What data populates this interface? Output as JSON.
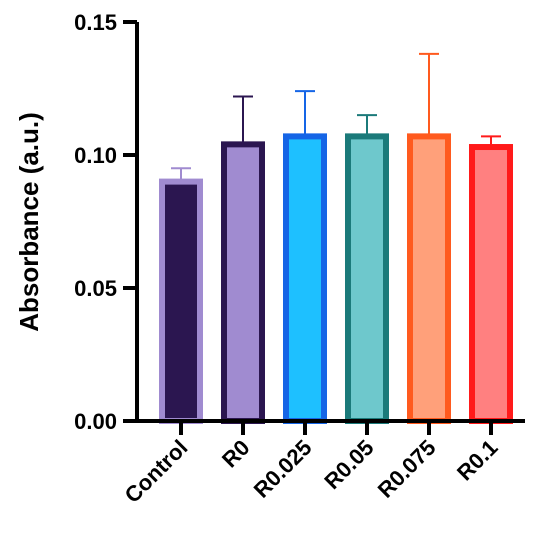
{
  "chart_data": {
    "type": "bar",
    "title": "",
    "xlabel": "",
    "ylabel": "Absorbance (a.u.)",
    "ylim": [
      0,
      0.15
    ],
    "yticks": [
      "0.00",
      "0.05",
      "0.10",
      "0.15"
    ],
    "ytick_values": [
      0,
      0.05,
      0.1,
      0.15
    ],
    "categories": [
      "Control",
      "R0",
      "R0.025",
      "R0.05",
      "R0.075",
      "R0.1"
    ],
    "values": [
      0.09,
      0.104,
      0.107,
      0.107,
      0.107,
      0.103
    ],
    "error_upper": [
      0.005,
      0.018,
      0.017,
      0.008,
      0.031,
      0.004
    ],
    "fill_colors": [
      "#2b1650",
      "#a08bd0",
      "#1ec0ff",
      "#6ec8cc",
      "#ffa07a",
      "#ff8080"
    ],
    "edge_colors": [
      "#a08bd0",
      "#2b1650",
      "#1565e6",
      "#1b7a7a",
      "#ff5a1e",
      "#ff1a1a"
    ],
    "grid": false,
    "legend": "none"
  }
}
